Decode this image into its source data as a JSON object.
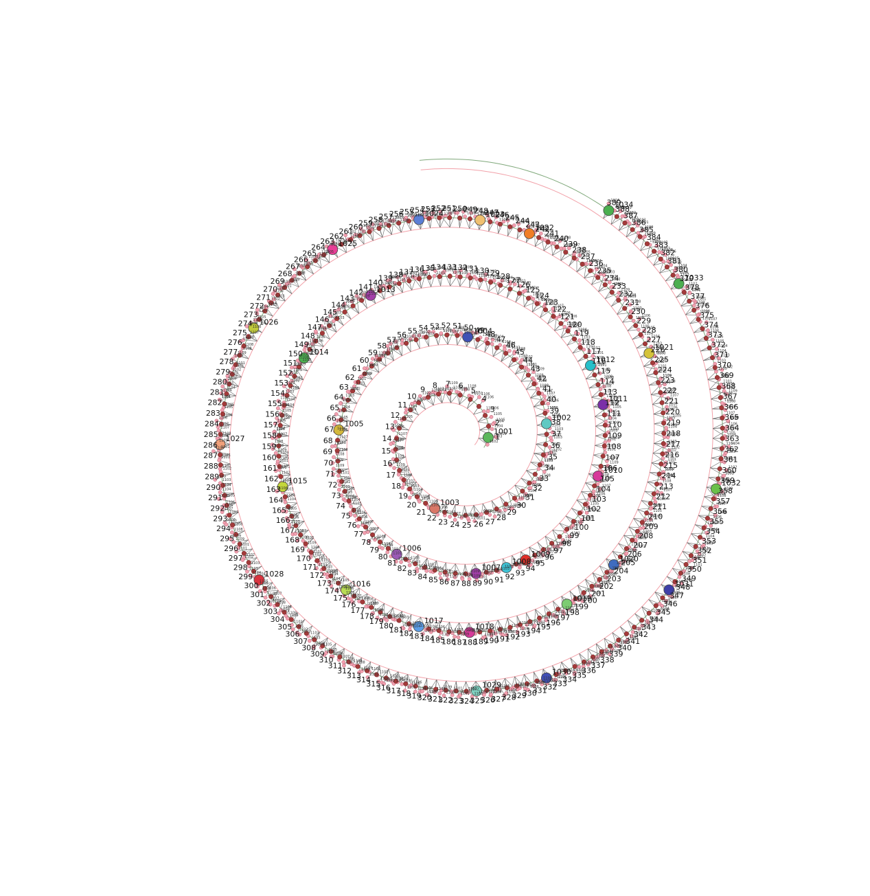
{
  "diagram": {
    "type": "spiral-network",
    "node_count": 389,
    "hubs": [
      {
        "label": "1001",
        "node": 1,
        "color": "#5cb85c"
      },
      {
        "label": "1002",
        "node": 38,
        "color": "#5fc9c3"
      },
      {
        "label": "1003",
        "node": 22,
        "color": "#d97767"
      },
      {
        "label": "1004",
        "node": 50,
        "color": "#3f51b5"
      },
      {
        "label": "1005",
        "node": 67,
        "color": "#d4b83b"
      },
      {
        "label": "1006",
        "node": 81,
        "color": "#9b59b6"
      },
      {
        "label": "1007",
        "node": 89,
        "color": "#a23fa8"
      },
      {
        "label": "1008",
        "node": 92,
        "color": "#3ec1d3"
      },
      {
        "label": "1009",
        "node": 94,
        "color": "#e0302a"
      },
      {
        "label": "1010",
        "node": 105,
        "color": "#d63b9a"
      },
      {
        "label": "1011",
        "node": 112,
        "color": "#7b2fa8"
      },
      {
        "label": "1012",
        "node": 116,
        "color": "#27bfc9"
      },
      {
        "label": "1013",
        "node": 141,
        "color": "#a23fa8"
      },
      {
        "label": "1014",
        "node": 150,
        "color": "#4caf50"
      },
      {
        "label": "1015",
        "node": 163,
        "color": "#c4d63b"
      },
      {
        "label": "1016",
        "node": 175,
        "color": "#b8dc54"
      },
      {
        "label": "1017",
        "node": 183,
        "color": "#5b9de6"
      },
      {
        "label": "1018",
        "node": 188,
        "color": "#d63b9a"
      },
      {
        "label": "1019",
        "node": 198,
        "color": "#7ccd72"
      },
      {
        "label": "1020",
        "node": 204,
        "color": "#3f6cc0"
      },
      {
        "label": "1021",
        "node": 226,
        "color": "#d4c33b"
      },
      {
        "label": "1022",
        "node": 243,
        "color": "#f07e26"
      },
      {
        "label": "1023",
        "node": 248,
        "color": "#f0c070"
      },
      {
        "label": "1024",
        "node": 254,
        "color": "#5b7fd6"
      },
      {
        "label": "1025",
        "node": 263,
        "color": "#e83e96"
      },
      {
        "label": "1026",
        "node": 274,
        "color": "#c0c93b"
      },
      {
        "label": "1027",
        "node": 286,
        "color": "#f0a07a"
      },
      {
        "label": "1028",
        "node": 300,
        "color": "#d9343f"
      },
      {
        "label": "1029",
        "node": 325,
        "color": "#7fd1c0"
      },
      {
        "label": "1030",
        "node": 332,
        "color": "#3f4fb5"
      },
      {
        "label": "1031",
        "node": 347,
        "color": "#3f3fa8"
      },
      {
        "label": "1032",
        "node": 358,
        "color": "#6ac04a"
      },
      {
        "label": "1033",
        "node": 379,
        "color": "#4caf50"
      },
      {
        "label": "1034",
        "node": 389,
        "color": "#4caf50"
      }
    ],
    "leaf_labels": [
      "1101",
      "1102",
      "1103",
      "1104",
      "1105",
      "1106",
      "1107",
      "1108",
      "1109"
    ],
    "colors": {
      "background": "#ffffff",
      "outer_spiral": "#7fa87a",
      "inner_spiral": "#f2a0a8",
      "node_fill": "#a33a3a",
      "node_stroke": "#6a2020",
      "leaf_fill": "#f2a0b0",
      "leaf_stroke": "#a05060",
      "edge": "#666666",
      "label": "#111111"
    }
  }
}
